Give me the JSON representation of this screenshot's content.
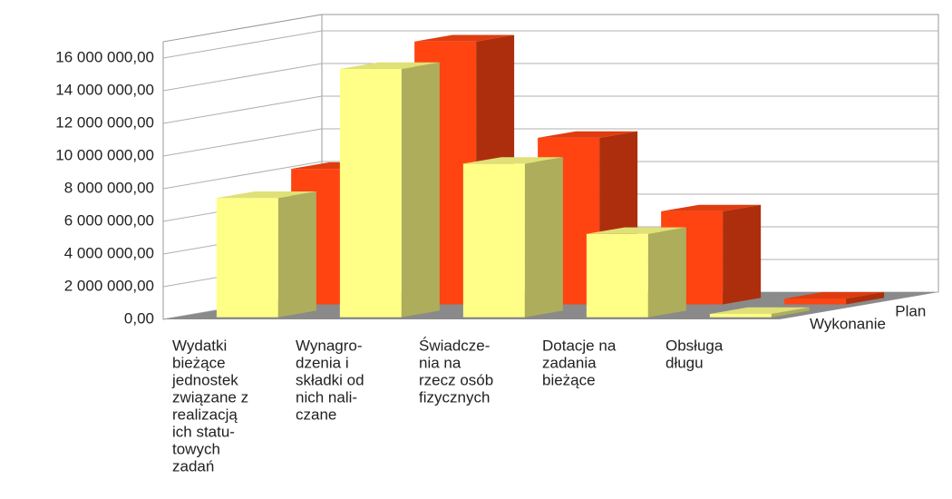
{
  "chart_data": {
    "type": "bar3d",
    "categories": [
      [
        "Wydatki",
        "bieżące",
        "jednostek",
        "związane z",
        "realizacją",
        "ich statu-",
        "towych",
        "zadań"
      ],
      [
        "Wynagro-",
        "dzenia i",
        "składki od",
        "nich nali-",
        "czane"
      ],
      [
        "Świadcze-",
        "nia na",
        "rzecz osób",
        "fizycznych"
      ],
      [
        "Dotacje na",
        "zadania",
        "bieżące"
      ],
      [
        "Obsługa",
        "długu"
      ]
    ],
    "series": [
      {
        "name": "Plan",
        "color": "#ff4411",
        "values": [
          8300000,
          16100000,
          10200000,
          5700000,
          350000
        ]
      },
      {
        "name": "Wykonanie",
        "color": "#ffff88",
        "values": [
          7300000,
          15200000,
          9400000,
          5100000,
          200000
        ]
      }
    ],
    "ylim": [
      0,
      17000000
    ],
    "yticks": [
      {
        "value": 0,
        "label": "0,00"
      },
      {
        "value": 2000000,
        "label": "2 000 000,00"
      },
      {
        "value": 4000000,
        "label": "4 000 000,00"
      },
      {
        "value": 6000000,
        "label": "6 000 000,00"
      },
      {
        "value": 8000000,
        "label": "8 000 000,00"
      },
      {
        "value": 10000000,
        "label": "10 000 000,00"
      },
      {
        "value": 12000000,
        "label": "12 000 000,00"
      },
      {
        "value": 14000000,
        "label": "14 000 000,00"
      },
      {
        "value": 16000000,
        "label": "16 000 000,00"
      }
    ],
    "grid": true
  }
}
